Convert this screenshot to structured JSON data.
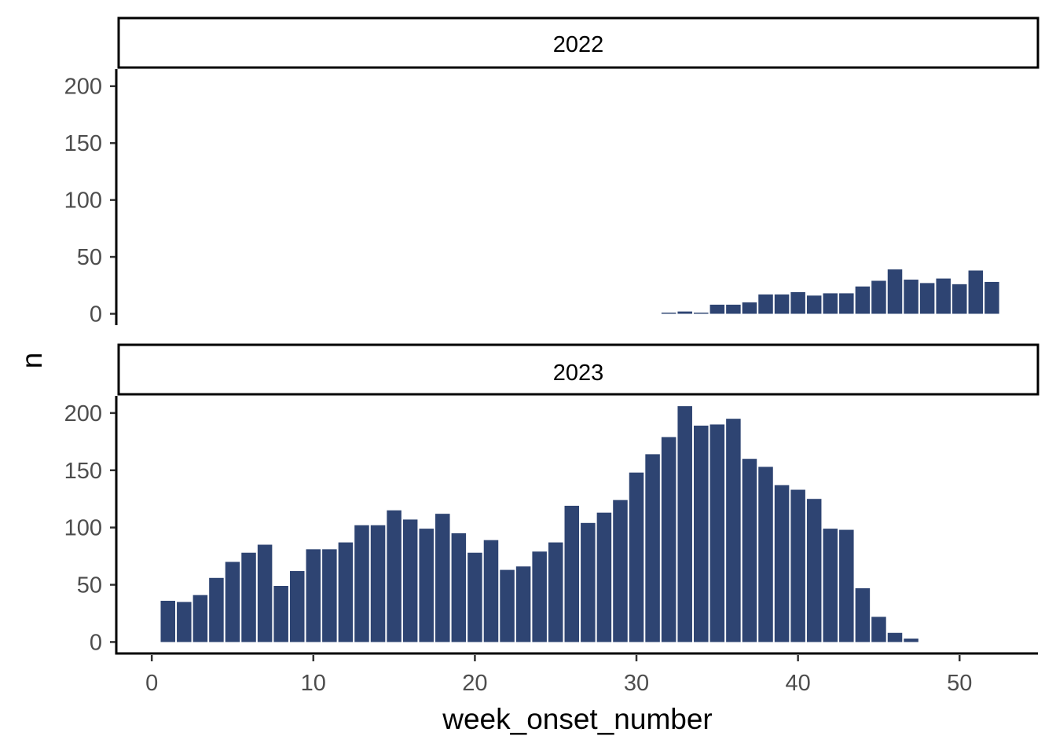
{
  "chart_data": {
    "type": "bar",
    "xlabel": "week_onset_number",
    "ylabel": "n",
    "xlim": [
      -2.1,
      54.9
    ],
    "ylim": [
      -10,
      215
    ],
    "x_ticks": [
      0,
      10,
      20,
      30,
      40,
      50
    ],
    "y_ticks": [
      0,
      50,
      100,
      150,
      200
    ],
    "bar_color": "#2e4472",
    "panels": [
      {
        "label": "2022",
        "x": [
          32,
          33,
          34,
          35,
          36,
          37,
          38,
          39,
          40,
          41,
          42,
          43,
          44,
          45,
          46,
          47,
          48,
          49,
          50,
          51,
          52
        ],
        "values": [
          1,
          2,
          1,
          8,
          8,
          10,
          17,
          17,
          19,
          16,
          18,
          18,
          24,
          29,
          39,
          30,
          27,
          31,
          26,
          38,
          28
        ]
      },
      {
        "label": "2023",
        "x": [
          1,
          2,
          3,
          4,
          5,
          6,
          7,
          8,
          9,
          10,
          11,
          12,
          13,
          14,
          15,
          16,
          17,
          18,
          19,
          20,
          21,
          22,
          23,
          24,
          25,
          26,
          27,
          28,
          29,
          30,
          31,
          32,
          33,
          34,
          35,
          36,
          37,
          38,
          39,
          40,
          41,
          42,
          43,
          44,
          45,
          46,
          47
        ],
        "values": [
          36,
          35,
          41,
          56,
          70,
          78,
          85,
          49,
          62,
          81,
          81,
          87,
          102,
          102,
          115,
          107,
          99,
          112,
          95,
          78,
          89,
          63,
          66,
          79,
          87,
          119,
          104,
          113,
          124,
          148,
          164,
          179,
          206,
          189,
          190,
          195,
          160,
          153,
          137,
          133,
          125,
          99,
          98,
          47,
          22,
          8,
          3
        ]
      }
    ]
  }
}
